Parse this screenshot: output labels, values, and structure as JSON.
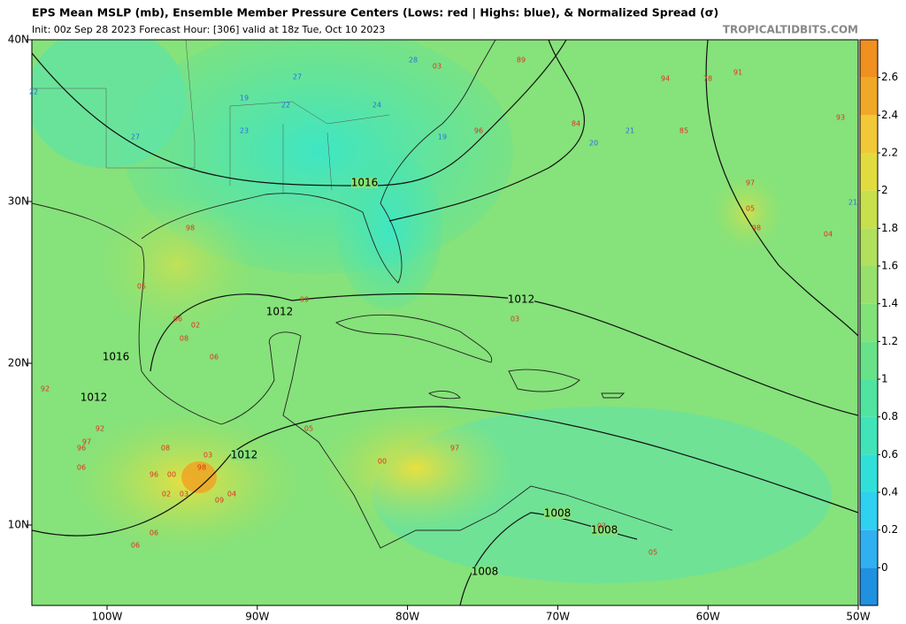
{
  "header": {
    "title": "EPS Mean MSLP (mb), Ensemble Member Pressure Centers (Lows: red | Highs: blue), & Normalized Spread (σ)",
    "subtitle": "Init: 00z Sep 28 2023   Forecast Hour: [306]   valid at 18z Tue, Oct 10 2023",
    "source": "TROPICALTIDBITS.COM"
  },
  "axes": {
    "lat_labels": [
      "40N",
      "30N",
      "20N",
      "10N"
    ],
    "lon_labels": [
      "100W",
      "90W",
      "80W",
      "70W",
      "60W",
      "50W"
    ]
  },
  "colorbar": {
    "ticks": [
      0,
      0.2,
      0.4,
      0.6,
      0.8,
      1,
      1.2,
      1.4,
      1.6,
      1.8,
      2,
      2.2,
      2.4,
      2.6
    ]
  },
  "contour_labels": [
    "1016",
    "1012",
    "1012",
    "1016",
    "1012",
    "1012",
    "1008",
    "1008",
    "1008"
  ],
  "pressure_centers": [
    {
      "text": "27",
      "color": "#2a6fe0"
    },
    {
      "text": "22",
      "color": "#2a6fe0"
    },
    {
      "text": "19",
      "color": "#2a6fe0"
    },
    {
      "text": "23",
      "color": "#2a6fe0"
    },
    {
      "text": "24",
      "color": "#2a6fe0"
    },
    {
      "text": "28",
      "color": "#2a6fe0"
    },
    {
      "text": "19",
      "color": "#2a6fe0"
    },
    {
      "text": "20",
      "color": "#2a6fe0"
    },
    {
      "text": "21",
      "color": "#2a6fe0"
    },
    {
      "text": "21",
      "color": "#2a6fe0"
    },
    {
      "text": "27",
      "color": "#2a6fe0"
    },
    {
      "text": "22",
      "color": "#2a6fe0"
    },
    {
      "text": "03",
      "color": "#e03020"
    },
    {
      "text": "89",
      "color": "#e03020"
    },
    {
      "text": "94",
      "color": "#e03020"
    },
    {
      "text": "78",
      "color": "#e03020"
    },
    {
      "text": "91",
      "color": "#e03020"
    },
    {
      "text": "93",
      "color": "#e03020"
    },
    {
      "text": "84",
      "color": "#e03020"
    },
    {
      "text": "85",
      "color": "#e03020"
    },
    {
      "text": "96",
      "color": "#e03020"
    },
    {
      "text": "97",
      "color": "#e03020"
    },
    {
      "text": "05",
      "color": "#e03020"
    },
    {
      "text": "98",
      "color": "#e03020"
    },
    {
      "text": "04",
      "color": "#e03020"
    },
    {
      "text": "98",
      "color": "#e03020"
    },
    {
      "text": "99",
      "color": "#e03020"
    },
    {
      "text": "06",
      "color": "#e03020"
    },
    {
      "text": "02",
      "color": "#e03020"
    },
    {
      "text": "08",
      "color": "#e03020"
    },
    {
      "text": "06",
      "color": "#e03020"
    },
    {
      "text": "05",
      "color": "#e03020"
    },
    {
      "text": "03",
      "color": "#e03020"
    },
    {
      "text": "92",
      "color": "#e03020"
    },
    {
      "text": "92",
      "color": "#e03020"
    },
    {
      "text": "97",
      "color": "#e03020"
    },
    {
      "text": "96",
      "color": "#e03020"
    },
    {
      "text": "06",
      "color": "#e03020"
    },
    {
      "text": "08",
      "color": "#e03020"
    },
    {
      "text": "03",
      "color": "#e03020"
    },
    {
      "text": "98",
      "color": "#e03020"
    },
    {
      "text": "96",
      "color": "#e03020"
    },
    {
      "text": "00",
      "color": "#e03020"
    },
    {
      "text": "02",
      "color": "#e03020"
    },
    {
      "text": "03",
      "color": "#e03020"
    },
    {
      "text": "04",
      "color": "#e03020"
    },
    {
      "text": "09",
      "color": "#e03020"
    },
    {
      "text": "06",
      "color": "#e03020"
    },
    {
      "text": "06",
      "color": "#e03020"
    },
    {
      "text": "00",
      "color": "#e03020"
    },
    {
      "text": "97",
      "color": "#e03020"
    },
    {
      "text": "05",
      "color": "#e03020"
    },
    {
      "text": "05",
      "color": "#e03020"
    },
    {
      "text": "03",
      "color": "#e03020"
    }
  ]
}
